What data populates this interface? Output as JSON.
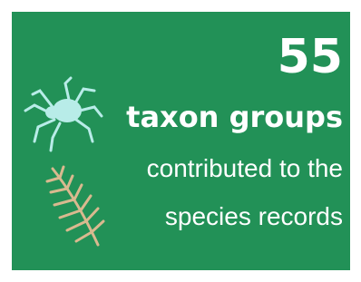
{
  "stat": {
    "value": 55,
    "label": "taxon groups",
    "description": [
      "contributed to the",
      "species records"
    ]
  }
}
